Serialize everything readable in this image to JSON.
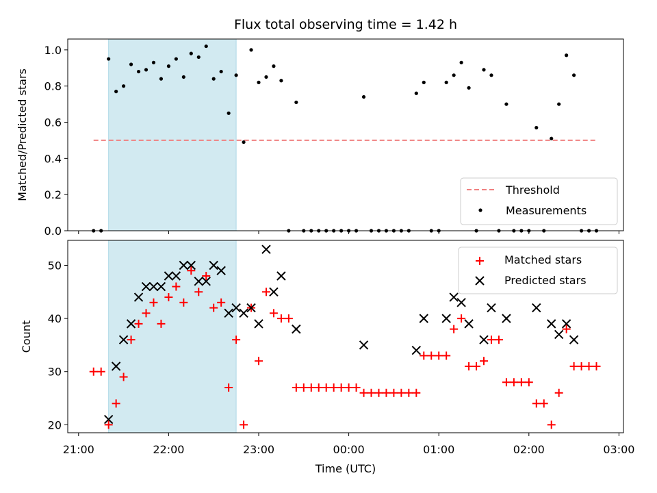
{
  "chart_data": [
    {
      "type": "scatter",
      "title": "Flux total observing time = 1.42 h",
      "xlabel": "",
      "ylabel": "Matched/Predicted stars",
      "ylim": [
        0,
        1.06
      ],
      "yticks": [
        "0.0",
        "0.2",
        "0.4",
        "0.6",
        "0.8",
        "1.0"
      ],
      "ytick_values": [
        0,
        0.2,
        0.4,
        0.6,
        0.8,
        1.0
      ],
      "xlim": [
        "21:00",
        "03:00"
      ],
      "highlight_span": {
        "start": "21:20",
        "end": "22:45",
        "color": "#add8e6"
      },
      "threshold": {
        "name": "Threshold",
        "value": 0.5,
        "from": "21:10",
        "to": "02:45",
        "color": "#f08080"
      },
      "legend_position": "bottom-right",
      "series": [
        {
          "name": "Measurements",
          "color": "#000000",
          "points": [
            {
              "x": "21:10",
              "y": 0.0
            },
            {
              "x": "21:15",
              "y": 0.0
            },
            {
              "x": "21:20",
              "y": 0.95
            },
            {
              "x": "21:25",
              "y": 0.77
            },
            {
              "x": "21:30",
              "y": 0.8
            },
            {
              "x": "21:35",
              "y": 0.92
            },
            {
              "x": "21:40",
              "y": 0.88
            },
            {
              "x": "21:45",
              "y": 0.89
            },
            {
              "x": "21:50",
              "y": 0.93
            },
            {
              "x": "21:55",
              "y": 0.84
            },
            {
              "x": "22:00",
              "y": 0.91
            },
            {
              "x": "22:05",
              "y": 0.95
            },
            {
              "x": "22:10",
              "y": 0.85
            },
            {
              "x": "22:15",
              "y": 0.98
            },
            {
              "x": "22:20",
              "y": 0.96
            },
            {
              "x": "22:25",
              "y": 1.02
            },
            {
              "x": "22:30",
              "y": 0.84
            },
            {
              "x": "22:35",
              "y": 0.88
            },
            {
              "x": "22:40",
              "y": 0.65
            },
            {
              "x": "22:45",
              "y": 0.86
            },
            {
              "x": "22:50",
              "y": 0.49
            },
            {
              "x": "22:55",
              "y": 1.0
            },
            {
              "x": "23:00",
              "y": 0.82
            },
            {
              "x": "23:05",
              "y": 0.85
            },
            {
              "x": "23:10",
              "y": 0.91
            },
            {
              "x": "23:15",
              "y": 0.83
            },
            {
              "x": "23:20",
              "y": 0.0
            },
            {
              "x": "23:25",
              "y": 0.71
            },
            {
              "x": "23:30",
              "y": 0.0
            },
            {
              "x": "23:35",
              "y": 0.0
            },
            {
              "x": "23:40",
              "y": 0.0
            },
            {
              "x": "23:45",
              "y": 0.0
            },
            {
              "x": "23:50",
              "y": 0.0
            },
            {
              "x": "23:55",
              "y": 0.0
            },
            {
              "x": "00:00",
              "y": 0.0
            },
            {
              "x": "00:05",
              "y": 0.0
            },
            {
              "x": "00:10",
              "y": 0.74
            },
            {
              "x": "00:15",
              "y": 0.0
            },
            {
              "x": "00:20",
              "y": 0.0
            },
            {
              "x": "00:25",
              "y": 0.0
            },
            {
              "x": "00:30",
              "y": 0.0
            },
            {
              "x": "00:35",
              "y": 0.0
            },
            {
              "x": "00:40",
              "y": 0.0
            },
            {
              "x": "00:45",
              "y": 0.76
            },
            {
              "x": "00:50",
              "y": 0.82
            },
            {
              "x": "00:55",
              "y": 0.0
            },
            {
              "x": "01:00",
              "y": 0.0
            },
            {
              "x": "01:05",
              "y": 0.82
            },
            {
              "x": "01:10",
              "y": 0.86
            },
            {
              "x": "01:15",
              "y": 0.93
            },
            {
              "x": "01:20",
              "y": 0.79
            },
            {
              "x": "01:25",
              "y": 0.0
            },
            {
              "x": "01:30",
              "y": 0.89
            },
            {
              "x": "01:35",
              "y": 0.86
            },
            {
              "x": "01:40",
              "y": 0.0
            },
            {
              "x": "01:45",
              "y": 0.7
            },
            {
              "x": "01:50",
              "y": 0.0
            },
            {
              "x": "01:55",
              "y": 0.0
            },
            {
              "x": "02:00",
              "y": 0.0
            },
            {
              "x": "02:05",
              "y": 0.57
            },
            {
              "x": "02:10",
              "y": 0.0
            },
            {
              "x": "02:15",
              "y": 0.51
            },
            {
              "x": "02:20",
              "y": 0.7
            },
            {
              "x": "02:25",
              "y": 0.97
            },
            {
              "x": "02:30",
              "y": 0.86
            },
            {
              "x": "02:35",
              "y": 0.0
            },
            {
              "x": "02:40",
              "y": 0.0
            },
            {
              "x": "02:45",
              "y": 0.0
            }
          ]
        }
      ]
    },
    {
      "type": "scatter",
      "title": "",
      "xlabel": "Time (UTC)",
      "ylabel": "Count",
      "ylim": [
        18.5,
        54.7
      ],
      "yticks": [
        "20",
        "30",
        "40",
        "50"
      ],
      "ytick_values": [
        20,
        30,
        40,
        50
      ],
      "xlim": [
        "21:00",
        "03:00"
      ],
      "xticks": [
        "21:00",
        "22:00",
        "23:00",
        "00:00",
        "01:00",
        "02:00",
        "03:00"
      ],
      "highlight_span": {
        "start": "21:20",
        "end": "22:45",
        "color": "#add8e6"
      },
      "legend_position": "top-right",
      "series": [
        {
          "name": "Matched stars",
          "marker": "plus",
          "color": "#ff0000",
          "points": [
            {
              "x": "21:10",
              "y": 30
            },
            {
              "x": "21:15",
              "y": 30
            },
            {
              "x": "21:20",
              "y": 20
            },
            {
              "x": "21:25",
              "y": 24
            },
            {
              "x": "21:30",
              "y": 29
            },
            {
              "x": "21:35",
              "y": 36
            },
            {
              "x": "21:40",
              "y": 39
            },
            {
              "x": "21:45",
              "y": 41
            },
            {
              "x": "21:50",
              "y": 43
            },
            {
              "x": "21:55",
              "y": 39
            },
            {
              "x": "22:00",
              "y": 44
            },
            {
              "x": "22:05",
              "y": 46
            },
            {
              "x": "22:10",
              "y": 43
            },
            {
              "x": "22:15",
              "y": 49
            },
            {
              "x": "22:20",
              "y": 45
            },
            {
              "x": "22:25",
              "y": 48
            },
            {
              "x": "22:30",
              "y": 42
            },
            {
              "x": "22:35",
              "y": 43
            },
            {
              "x": "22:40",
              "y": 27
            },
            {
              "x": "22:45",
              "y": 36
            },
            {
              "x": "22:50",
              "y": 20
            },
            {
              "x": "22:55",
              "y": 42
            },
            {
              "x": "23:00",
              "y": 32
            },
            {
              "x": "23:05",
              "y": 45
            },
            {
              "x": "23:10",
              "y": 41
            },
            {
              "x": "23:15",
              "y": 40
            },
            {
              "x": "23:20",
              "y": 40
            },
            {
              "x": "23:25",
              "y": 27
            },
            {
              "x": "23:30",
              "y": 27
            },
            {
              "x": "23:35",
              "y": 27
            },
            {
              "x": "23:40",
              "y": 27
            },
            {
              "x": "23:45",
              "y": 27
            },
            {
              "x": "23:50",
              "y": 27
            },
            {
              "x": "23:55",
              "y": 27
            },
            {
              "x": "00:00",
              "y": 27
            },
            {
              "x": "00:05",
              "y": 27
            },
            {
              "x": "00:10",
              "y": 26
            },
            {
              "x": "00:15",
              "y": 26
            },
            {
              "x": "00:20",
              "y": 26
            },
            {
              "x": "00:25",
              "y": 26
            },
            {
              "x": "00:30",
              "y": 26
            },
            {
              "x": "00:35",
              "y": 26
            },
            {
              "x": "00:40",
              "y": 26
            },
            {
              "x": "00:45",
              "y": 26
            },
            {
              "x": "00:50",
              "y": 33
            },
            {
              "x": "00:55",
              "y": 33
            },
            {
              "x": "01:00",
              "y": 33
            },
            {
              "x": "01:05",
              "y": 33
            },
            {
              "x": "01:10",
              "y": 38
            },
            {
              "x": "01:15",
              "y": 40
            },
            {
              "x": "01:20",
              "y": 31
            },
            {
              "x": "01:25",
              "y": 31
            },
            {
              "x": "01:30",
              "y": 32
            },
            {
              "x": "01:35",
              "y": 36
            },
            {
              "x": "01:40",
              "y": 36
            },
            {
              "x": "01:45",
              "y": 28
            },
            {
              "x": "01:50",
              "y": 28
            },
            {
              "x": "01:55",
              "y": 28
            },
            {
              "x": "02:00",
              "y": 28
            },
            {
              "x": "02:05",
              "y": 24
            },
            {
              "x": "02:10",
              "y": 24
            },
            {
              "x": "02:15",
              "y": 20
            },
            {
              "x": "02:20",
              "y": 26
            },
            {
              "x": "02:25",
              "y": 38
            },
            {
              "x": "02:30",
              "y": 31
            },
            {
              "x": "02:35",
              "y": 31
            },
            {
              "x": "02:40",
              "y": 31
            },
            {
              "x": "02:45",
              "y": 31
            }
          ]
        },
        {
          "name": "Predicted stars",
          "marker": "x",
          "color": "#000000",
          "points": [
            {
              "x": "21:20",
              "y": 21
            },
            {
              "x": "21:25",
              "y": 31
            },
            {
              "x": "21:30",
              "y": 36
            },
            {
              "x": "21:35",
              "y": 39
            },
            {
              "x": "21:40",
              "y": 44
            },
            {
              "x": "21:45",
              "y": 46
            },
            {
              "x": "21:50",
              "y": 46
            },
            {
              "x": "21:55",
              "y": 46
            },
            {
              "x": "22:00",
              "y": 48
            },
            {
              "x": "22:05",
              "y": 48
            },
            {
              "x": "22:10",
              "y": 50
            },
            {
              "x": "22:15",
              "y": 50
            },
            {
              "x": "22:20",
              "y": 47
            },
            {
              "x": "22:25",
              "y": 47
            },
            {
              "x": "22:30",
              "y": 50
            },
            {
              "x": "22:35",
              "y": 49
            },
            {
              "x": "22:40",
              "y": 41
            },
            {
              "x": "22:45",
              "y": 42
            },
            {
              "x": "22:50",
              "y": 41
            },
            {
              "x": "22:55",
              "y": 42
            },
            {
              "x": "23:00",
              "y": 39
            },
            {
              "x": "23:05",
              "y": 53
            },
            {
              "x": "23:10",
              "y": 45
            },
            {
              "x": "23:15",
              "y": 48
            },
            {
              "x": "23:25",
              "y": 38
            },
            {
              "x": "00:10",
              "y": 35
            },
            {
              "x": "00:45",
              "y": 34
            },
            {
              "x": "00:50",
              "y": 40
            },
            {
              "x": "01:05",
              "y": 40
            },
            {
              "x": "01:10",
              "y": 44
            },
            {
              "x": "01:15",
              "y": 43
            },
            {
              "x": "01:20",
              "y": 39
            },
            {
              "x": "01:30",
              "y": 36
            },
            {
              "x": "01:35",
              "y": 42
            },
            {
              "x": "01:45",
              "y": 40
            },
            {
              "x": "02:05",
              "y": 42
            },
            {
              "x": "02:15",
              "y": 39
            },
            {
              "x": "02:20",
              "y": 37
            },
            {
              "x": "02:25",
              "y": 39
            },
            {
              "x": "02:30",
              "y": 36
            }
          ]
        }
      ]
    }
  ]
}
